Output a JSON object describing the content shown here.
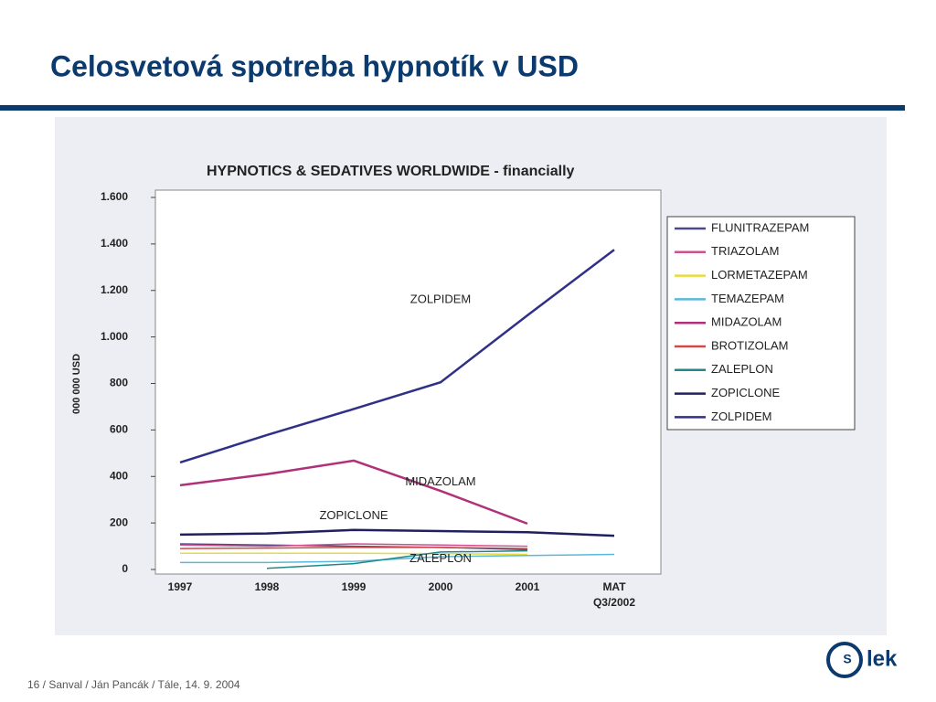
{
  "slide": {
    "title": "Celosvetová spotreba hypnotík v USD",
    "footer": "16 / Sanval / Ján Pancák / Tále, 14. 9. 2004",
    "logo": "lek"
  },
  "chart_data": {
    "type": "line",
    "title": "HYPNOTICS & SEDATIVES WORLDWIDE - financially",
    "y_label": "000 000 USD",
    "categories": [
      "1997",
      "1998",
      "1999",
      "2000",
      "2001",
      "MAT Q3/2002"
    ],
    "ylim": [
      0,
      1600
    ],
    "yticks": [
      {
        "value": 0,
        "label": "0"
      },
      {
        "value": 200,
        "label": "200"
      },
      {
        "value": 400,
        "label": "400"
      },
      {
        "value": 600,
        "label": "600"
      },
      {
        "value": 800,
        "label": "800"
      },
      {
        "value": 1000,
        "label": "1.000"
      },
      {
        "value": 1200,
        "label": "1.200"
      },
      {
        "value": 1400,
        "label": "1.400"
      },
      {
        "value": 1600,
        "label": "1.600"
      }
    ],
    "series": [
      {
        "name": "FLUNITRAZEPAM",
        "color": "#4a4a8a",
        "values": [
          110,
          105,
          100,
          95,
          85,
          null
        ]
      },
      {
        "name": "TRIAZOLAM",
        "color": "#d0508f",
        "values": [
          105,
          100,
          110,
          105,
          100,
          null
        ]
      },
      {
        "name": "LORMETAZEPAM",
        "color": "#e6dc3c",
        "values": [
          70,
          70,
          70,
          68,
          65,
          null
        ]
      },
      {
        "name": "TEMAZEPAM",
        "color": "#5ab8dc",
        "values": [
          30,
          30,
          35,
          55,
          60,
          65
        ]
      },
      {
        "name": "MIDAZOLAM",
        "color": "#b0307a",
        "values": [
          362,
          410,
          468,
          338,
          197,
          null
        ]
      },
      {
        "name": "BROTIZOLAM",
        "color": "#d04848",
        "values": [
          90,
          92,
          95,
          95,
          90,
          null
        ]
      },
      {
        "name": "ZALEPLON",
        "color": "#208888",
        "values": [
          null,
          5,
          25,
          75,
          80,
          null
        ]
      },
      {
        "name": "ZOPICLONE",
        "color": "#202060",
        "values": [
          150,
          155,
          170,
          165,
          160,
          145
        ]
      },
      {
        "name": "ZOLPIDEM",
        "color": "#303088",
        "values": [
          460,
          578,
          690,
          805,
          1093,
          1375
        ]
      }
    ],
    "annotations": [
      {
        "text": "ZOLPIDEM",
        "x": "2000",
        "y": 1160
      },
      {
        "text": "MIDAZOLAM",
        "x": "2000",
        "y": 375
      },
      {
        "text": "ZOPICLONE",
        "x": "1999",
        "y": 230
      },
      {
        "text": "ZALEPLON",
        "x": "2000",
        "y": 45
      }
    ]
  }
}
